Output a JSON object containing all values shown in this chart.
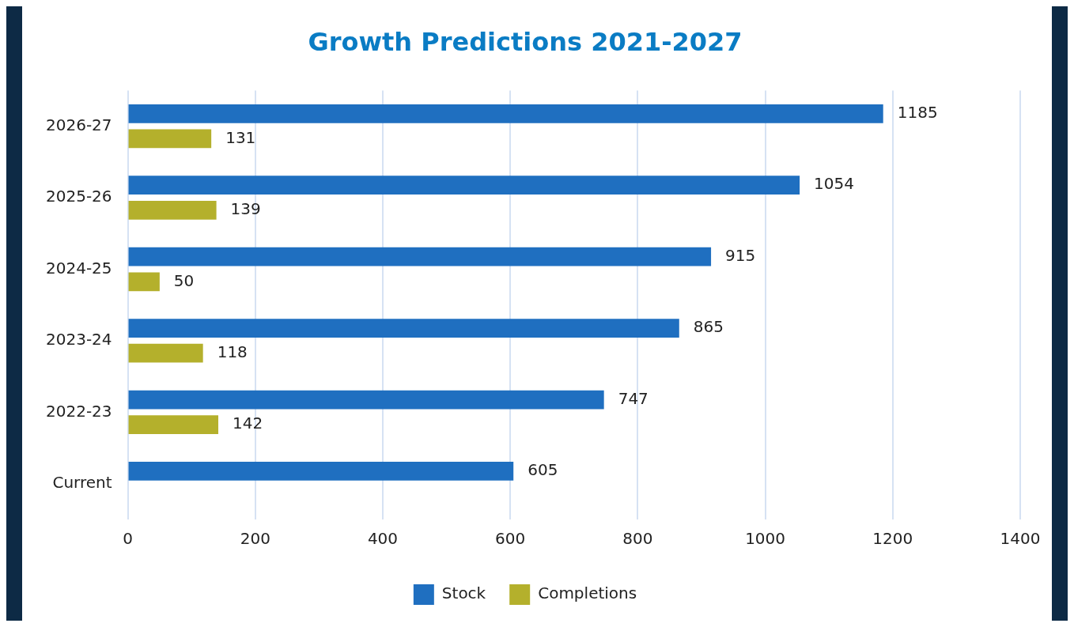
{
  "chart_data": {
    "type": "bar",
    "title": "Growth Predictions 2021-2027",
    "orientation": "horizontal",
    "categories": [
      "2026-27",
      "2025-26",
      "2024-25",
      "2023-24",
      "2022-23",
      "Current"
    ],
    "series": [
      {
        "name": "Stock",
        "color": "#1f6fc0",
        "values": [
          1185,
          1054,
          915,
          865,
          747,
          605
        ]
      },
      {
        "name": "Completions",
        "color": "#b4b02c",
        "values": [
          131,
          139,
          50,
          118,
          142,
          null
        ]
      }
    ],
    "xlim": [
      0,
      1400
    ],
    "xticks": [
      0,
      200,
      400,
      600,
      800,
      1000,
      1200,
      1400
    ],
    "grid": "x",
    "legend": "bottom",
    "data_labels": true
  }
}
